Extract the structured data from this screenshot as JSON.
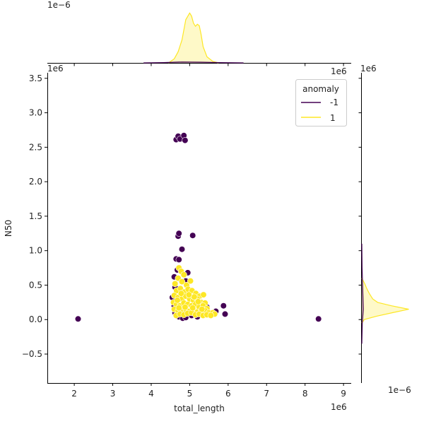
{
  "chart_data": {
    "type": "scatter",
    "subtype": "jointplot",
    "xlabel": "total_length",
    "ylabel": "N50",
    "x_multiplier_label": "1e6",
    "y_multiplier_label": "1e6",
    "x_ticks": [
      2,
      3,
      4,
      5,
      6,
      7,
      8,
      9
    ],
    "y_ticks": [
      -0.5,
      0.0,
      0.5,
      1.0,
      1.5,
      2.0,
      2.5,
      3.0,
      3.5
    ],
    "xlim": [
      1.3,
      9.2
    ],
    "ylim": [
      -0.92,
      3.58
    ],
    "legend": {
      "title": "anomaly",
      "placement": "top-right",
      "entries": [
        {
          "label": "-1",
          "color": "#440154"
        },
        {
          "label": "1",
          "color": "#fde725"
        }
      ]
    },
    "marginal_top": {
      "exponent_label": "1e−6",
      "extra_label": "1e6",
      "series": [
        {
          "name": "1",
          "color": "#fde725",
          "x": [
            4.45,
            4.6,
            4.7,
            4.8,
            4.9,
            5.0,
            5.05,
            5.1,
            5.15,
            5.2,
            5.25,
            5.3,
            5.35,
            5.45,
            5.6,
            5.75
          ],
          "density": [
            0.0,
            0.08,
            0.22,
            0.45,
            0.85,
            0.98,
            0.92,
            0.78,
            0.72,
            0.76,
            0.73,
            0.55,
            0.32,
            0.12,
            0.03,
            0.0
          ]
        },
        {
          "name": "-1",
          "color": "#440154",
          "x": [
            3.8,
            4.3,
            4.8,
            5.3,
            5.8,
            6.4
          ],
          "density": [
            0.0,
            0.005,
            0.018,
            0.014,
            0.005,
            0.0
          ]
        }
      ]
    },
    "marginal_right": {
      "exponent_label": "1e−6",
      "extra_label": "1e6",
      "series": [
        {
          "name": "1",
          "color": "#fde725",
          "y": [
            -0.05,
            0.0,
            0.05,
            0.1,
            0.15,
            0.2,
            0.25,
            0.3,
            0.38,
            0.45,
            0.52,
            0.6
          ],
          "density": [
            0.0,
            0.05,
            0.3,
            0.62,
            0.95,
            0.6,
            0.32,
            0.22,
            0.15,
            0.1,
            0.06,
            0.0
          ]
        },
        {
          "name": "-1",
          "color": "#440154",
          "y": [
            -0.35,
            -0.05,
            0.15,
            0.4,
            0.75,
            1.1
          ],
          "density": [
            0.0,
            0.01,
            0.03,
            0.02,
            0.005,
            0.0
          ]
        }
      ]
    },
    "series": [
      {
        "name": "-1",
        "color": "#440154",
        "points": [
          [
            2.1,
            0.01
          ],
          [
            8.35,
            0.01
          ],
          [
            4.65,
            2.61
          ],
          [
            4.7,
            2.66
          ],
          [
            4.75,
            2.62
          ],
          [
            4.85,
            2.67
          ],
          [
            4.88,
            2.6
          ],
          [
            4.7,
            1.21
          ],
          [
            4.72,
            1.25
          ],
          [
            5.08,
            1.22
          ],
          [
            4.8,
            1.02
          ],
          [
            4.65,
            0.88
          ],
          [
            4.72,
            0.87
          ],
          [
            4.6,
            0.62
          ],
          [
            4.68,
            0.72
          ],
          [
            4.95,
            0.68
          ],
          [
            4.9,
            0.56
          ],
          [
            4.62,
            0.47
          ],
          [
            4.55,
            0.32
          ],
          [
            4.6,
            0.2
          ],
          [
            4.62,
            0.1
          ],
          [
            4.72,
            0.04
          ],
          [
            4.82,
            0.02
          ],
          [
            4.9,
            0.03
          ],
          [
            5.05,
            0.06
          ],
          [
            5.2,
            0.04
          ],
          [
            5.35,
            0.08
          ],
          [
            5.5,
            0.1
          ],
          [
            5.6,
            0.08
          ],
          [
            5.68,
            0.12
          ],
          [
            5.88,
            0.2
          ],
          [
            5.92,
            0.08
          ],
          [
            5.3,
            0.25
          ],
          [
            5.45,
            0.18
          ]
        ]
      },
      {
        "name": "1",
        "color": "#fde725",
        "points": [
          [
            4.72,
            0.75
          ],
          [
            4.78,
            0.7
          ],
          [
            4.85,
            0.65
          ],
          [
            4.7,
            0.6
          ],
          [
            4.8,
            0.55
          ],
          [
            4.92,
            0.5
          ],
          [
            5.02,
            0.56
          ],
          [
            4.62,
            0.52
          ],
          [
            4.66,
            0.42
          ],
          [
            4.76,
            0.45
          ],
          [
            4.86,
            0.4
          ],
          [
            4.96,
            0.44
          ],
          [
            5.06,
            0.42
          ],
          [
            5.16,
            0.38
          ],
          [
            5.26,
            0.34
          ],
          [
            5.36,
            0.36
          ],
          [
            4.6,
            0.35
          ],
          [
            4.7,
            0.32
          ],
          [
            4.8,
            0.3
          ],
          [
            4.9,
            0.34
          ],
          [
            5.0,
            0.3
          ],
          [
            5.1,
            0.28
          ],
          [
            5.2,
            0.3
          ],
          [
            5.3,
            0.25
          ],
          [
            5.4,
            0.24
          ],
          [
            4.58,
            0.25
          ],
          [
            4.66,
            0.22
          ],
          [
            4.75,
            0.2
          ],
          [
            4.85,
            0.24
          ],
          [
            4.95,
            0.22
          ],
          [
            5.05,
            0.2
          ],
          [
            5.15,
            0.22
          ],
          [
            5.25,
            0.18
          ],
          [
            5.35,
            0.2
          ],
          [
            5.45,
            0.16
          ],
          [
            4.6,
            0.15
          ],
          [
            4.7,
            0.13
          ],
          [
            4.8,
            0.12
          ],
          [
            4.9,
            0.15
          ],
          [
            5.0,
            0.12
          ],
          [
            5.1,
            0.14
          ],
          [
            5.2,
            0.11
          ],
          [
            5.3,
            0.12
          ],
          [
            5.4,
            0.13
          ],
          [
            5.5,
            0.1
          ],
          [
            5.6,
            0.1
          ],
          [
            5.65,
            0.08
          ],
          [
            4.65,
            0.06
          ],
          [
            4.75,
            0.08
          ],
          [
            4.85,
            0.07
          ],
          [
            4.95,
            0.09
          ],
          [
            5.05,
            0.1
          ],
          [
            5.15,
            0.07
          ],
          [
            5.25,
            0.08
          ],
          [
            5.35,
            0.06
          ],
          [
            5.45,
            0.07
          ],
          [
            5.55,
            0.06
          ],
          [
            4.78,
            0.38
          ],
          [
            5.12,
            0.33
          ],
          [
            4.98,
            0.36
          ],
          [
            4.68,
            0.28
          ],
          [
            5.22,
            0.26
          ],
          [
            4.88,
            0.18
          ],
          [
            5.32,
            0.15
          ],
          [
            4.72,
            0.17
          ],
          [
            5.08,
            0.17
          ]
        ]
      }
    ]
  }
}
